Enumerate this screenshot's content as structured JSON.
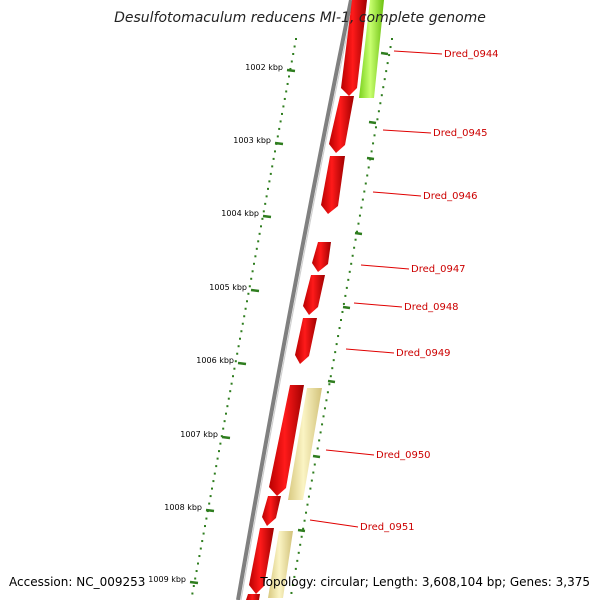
{
  "title": "Desulfotomaculum reducens MI-1, complete genome",
  "footer": {
    "accession": "Accession: NC_009253",
    "topology": "Topology: circular; Length: 3,608,104 bp; Genes: 3,375"
  },
  "colors": {
    "background": "#ffffff",
    "backbone": "#8a8a8a",
    "gene_forward": "#ff0000",
    "gene_green": "#99ff33",
    "gene_pale": "#f2e7a0",
    "tick": "#2e7d1e",
    "label": "#cc0000",
    "leader": "#e00000"
  },
  "ticks": [
    {
      "label": "1002 kbp"
    },
    {
      "label": "1003 kbp"
    },
    {
      "label": "1004 kbp"
    },
    {
      "label": "1005 kbp"
    },
    {
      "label": "1006 kbp"
    },
    {
      "label": "1007 kbp"
    },
    {
      "label": "1008 kbp"
    },
    {
      "label": "1009 kbp"
    }
  ],
  "gene_labels": [
    {
      "name": "Dred_0944"
    },
    {
      "name": "Dred_0945"
    },
    {
      "name": "Dred_0946"
    },
    {
      "name": "Dred_0947"
    },
    {
      "name": "Dred_0948"
    },
    {
      "name": "Dred_0949"
    },
    {
      "name": "Dred_0950"
    },
    {
      "name": "Dred_0951"
    }
  ]
}
